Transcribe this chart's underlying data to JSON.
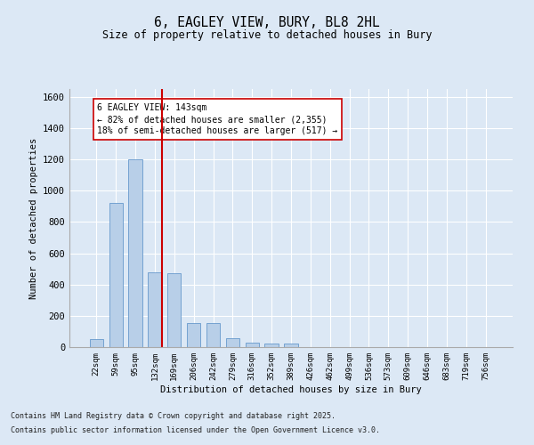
{
  "title_line1": "6, EAGLEY VIEW, BURY, BL8 2HL",
  "title_line2": "Size of property relative to detached houses in Bury",
  "xlabel": "Distribution of detached houses by size in Bury",
  "ylabel": "Number of detached properties",
  "categories": [
    "22sqm",
    "59sqm",
    "95sqm",
    "132sqm",
    "169sqm",
    "206sqm",
    "242sqm",
    "279sqm",
    "316sqm",
    "352sqm",
    "389sqm",
    "426sqm",
    "462sqm",
    "499sqm",
    "536sqm",
    "573sqm",
    "609sqm",
    "646sqm",
    "683sqm",
    "719sqm",
    "756sqm"
  ],
  "values": [
    50,
    920,
    1200,
    480,
    475,
    155,
    155,
    55,
    30,
    20,
    20,
    0,
    0,
    0,
    0,
    0,
    0,
    0,
    0,
    0,
    0
  ],
  "bar_color": "#b8cfe8",
  "bar_edge_color": "#6699cc",
  "vline_color": "#cc0000",
  "vline_index": 3,
  "annotation_text": "6 EAGLEY VIEW: 143sqm\n← 82% of detached houses are smaller (2,355)\n18% of semi-detached houses are larger (517) →",
  "annotation_box_facecolor": "#ffffff",
  "annotation_box_edgecolor": "#cc0000",
  "ylim": [
    0,
    1650
  ],
  "yticks": [
    0,
    200,
    400,
    600,
    800,
    1000,
    1200,
    1400,
    1600
  ],
  "bg_color": "#dce8f5",
  "plot_bg_color": "#dce8f5",
  "grid_color": "#ffffff",
  "footnote1": "Contains HM Land Registry data © Crown copyright and database right 2025.",
  "footnote2": "Contains public sector information licensed under the Open Government Licence v3.0."
}
